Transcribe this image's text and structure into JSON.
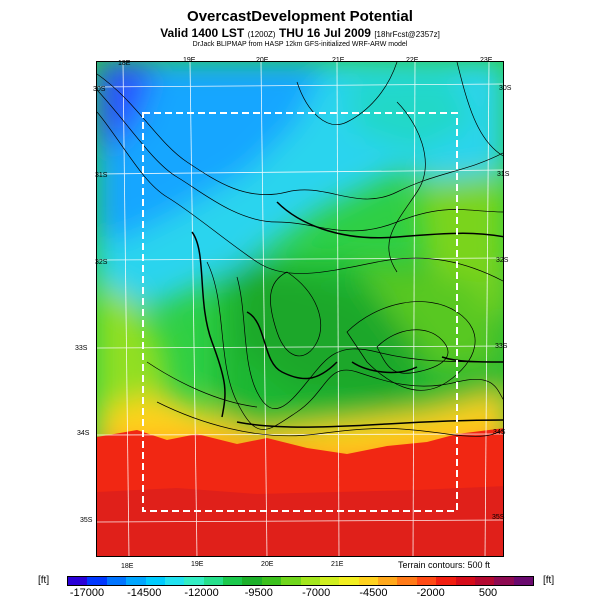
{
  "header": {
    "title": "OvercastDevelopment Potential",
    "valid_prefix": "Valid 1400 LST",
    "valid_utc": "(1200Z)",
    "valid_date": "THU 16 Jul 2009",
    "forecast": "[18hrFcst@2357z]",
    "credit": "DrJack BLIPMAP from HASP 12km GFS-initialized WRF-ARW model"
  },
  "map": {
    "lon_top_labels": [
      "18E",
      "19E",
      "20E",
      "21E",
      "22E",
      "23E"
    ],
    "lon_bottom_labels": [
      "18E",
      "19E",
      "20E",
      "21E"
    ],
    "lat_left_labels": [
      "30S",
      "31S",
      "32S",
      "33S",
      "34S",
      "35S"
    ],
    "lat_right_labels": [
      "30S",
      "31S",
      "32S",
      "33S",
      "34S",
      "35S"
    ],
    "terrain_note": "Terrain contours: 500 ft"
  },
  "legend": {
    "unit_left": "[ft]",
    "unit_right": "[ft]",
    "ticks": [
      "-17000",
      "-14500",
      "-12000",
      "-9500",
      "-7000",
      "-4500",
      "-2000",
      "500"
    ],
    "colors": [
      "#2a00d8",
      "#0037ff",
      "#0074ff",
      "#00a6ff",
      "#00ccff",
      "#22e2f0",
      "#33eec4",
      "#26e08c",
      "#1bc94c",
      "#1db02a",
      "#3cc11d",
      "#70d61c",
      "#a3e61d",
      "#cfee1f",
      "#f2ef21",
      "#ffd21e",
      "#ffa81b",
      "#ff7a18",
      "#ff4a14",
      "#f21e10",
      "#d60c1a",
      "#b40830",
      "#8e0a52",
      "#6a0a6e"
    ]
  }
}
